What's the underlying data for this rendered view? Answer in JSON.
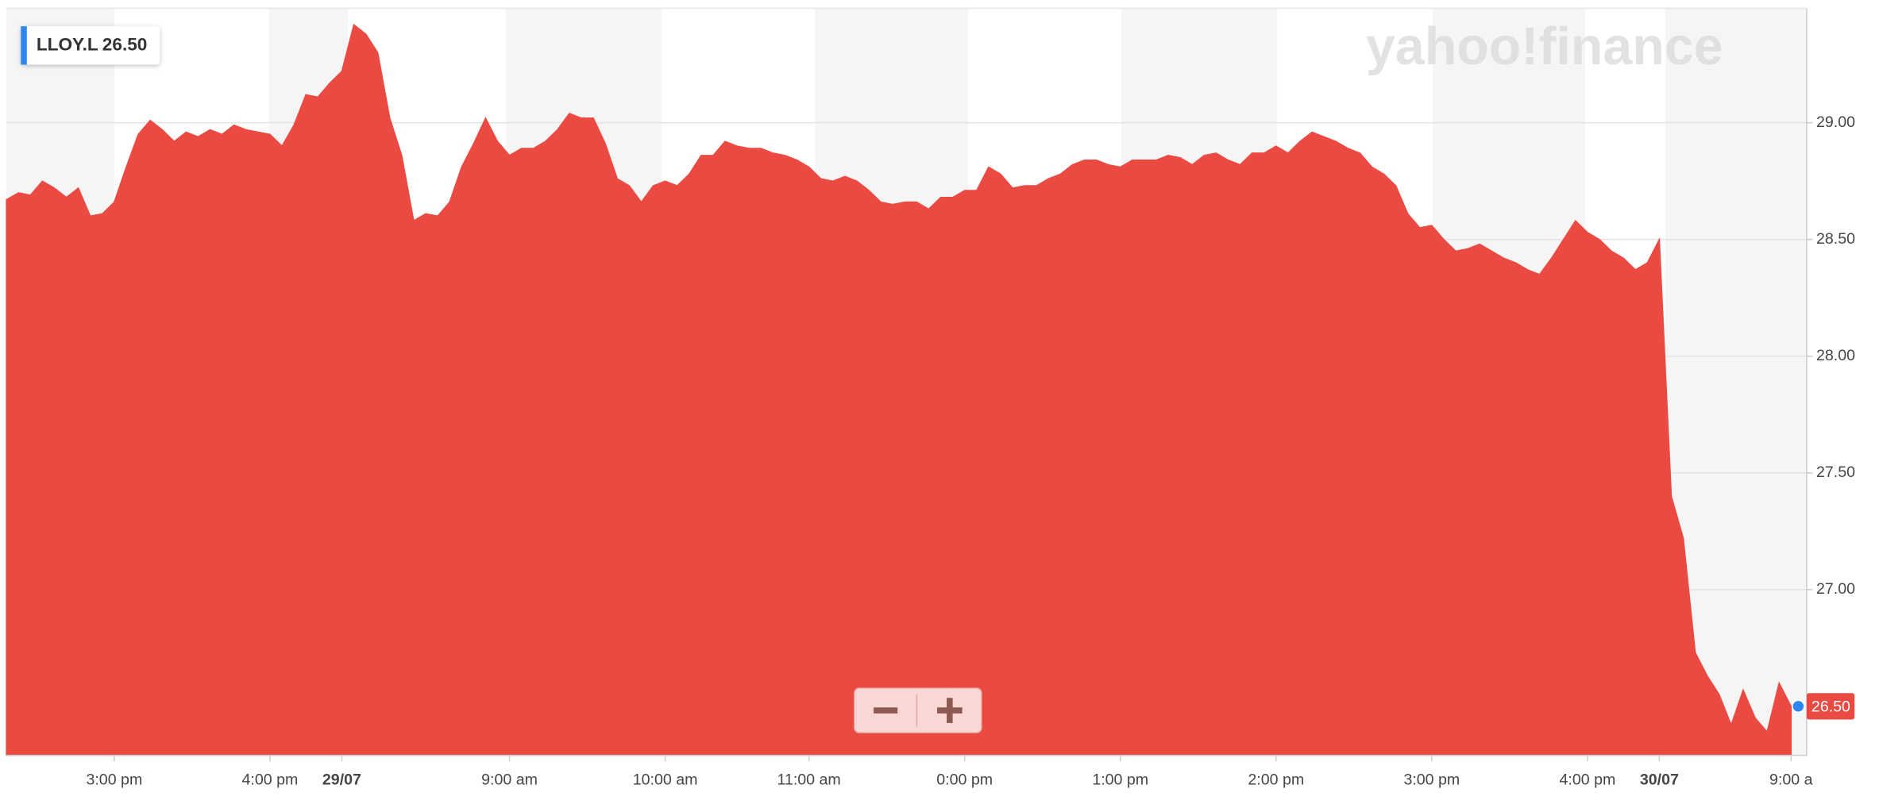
{
  "chart_data": {
    "type": "area",
    "watermark": "yahoo!finance",
    "last_price": {
      "value": 26.5,
      "label": "26.50"
    },
    "categories": [
      null,
      null,
      null,
      null,
      null,
      null,
      null,
      null,
      null,
      "3:00 pm",
      null,
      null,
      null,
      null,
      null,
      null,
      null,
      null,
      null,
      null,
      null,
      null,
      "4:00 pm",
      null,
      null,
      null,
      null,
      null,
      "29/07",
      null,
      null,
      null,
      null,
      null,
      null,
      null,
      null,
      null,
      null,
      null,
      null,
      null,
      "9:00 am",
      null,
      null,
      null,
      null,
      null,
      null,
      null,
      null,
      null,
      null,
      null,
      null,
      "10:00 am",
      null,
      null,
      null,
      null,
      null,
      null,
      null,
      null,
      null,
      null,
      null,
      "11:00 am",
      null,
      null,
      null,
      null,
      null,
      null,
      null,
      null,
      null,
      null,
      null,
      null,
      "0:00 pm",
      null,
      null,
      null,
      null,
      null,
      null,
      null,
      null,
      null,
      null,
      null,
      null,
      "1:00 pm",
      null,
      null,
      null,
      null,
      null,
      null,
      null,
      null,
      null,
      null,
      null,
      null,
      "2:00 pm",
      null,
      null,
      null,
      null,
      null,
      null,
      null,
      null,
      null,
      null,
      null,
      null,
      "3:00 pm",
      null,
      null,
      null,
      null,
      null,
      null,
      null,
      null,
      null,
      null,
      null,
      null,
      "4:00 pm",
      null,
      null,
      null,
      null,
      null,
      "30/07",
      null,
      null,
      null,
      null,
      null,
      null,
      null,
      null,
      null,
      null,
      "9:00 a"
    ],
    "series": [
      {
        "name": "LLOY.L",
        "color": "#eb4a42",
        "values": [
          28.67,
          28.7,
          28.69,
          28.75,
          28.72,
          28.68,
          28.72,
          28.6,
          28.61,
          28.66,
          28.81,
          28.95,
          29.01,
          28.97,
          28.92,
          28.96,
          28.94,
          28.97,
          28.95,
          28.99,
          28.97,
          28.96,
          28.95,
          28.9,
          28.99,
          29.12,
          29.11,
          29.17,
          29.22,
          29.42,
          29.38,
          29.3,
          29.02,
          28.86,
          28.58,
          28.61,
          28.6,
          28.66,
          28.81,
          28.91,
          29.02,
          28.92,
          28.86,
          28.89,
          28.89,
          28.92,
          28.97,
          29.04,
          29.02,
          29.02,
          28.91,
          28.76,
          28.73,
          28.66,
          28.73,
          28.75,
          28.73,
          28.78,
          28.86,
          28.86,
          28.92,
          28.9,
          28.89,
          28.89,
          28.87,
          28.86,
          28.84,
          28.81,
          28.76,
          28.75,
          28.77,
          28.75,
          28.71,
          28.66,
          28.65,
          28.66,
          28.66,
          28.63,
          28.68,
          28.68,
          28.71,
          28.71,
          28.81,
          28.78,
          28.72,
          28.73,
          28.73,
          28.76,
          28.78,
          28.82,
          28.84,
          28.84,
          28.82,
          28.81,
          28.84,
          28.84,
          28.84,
          28.86,
          28.85,
          28.82,
          28.86,
          28.87,
          28.84,
          28.82,
          28.87,
          28.87,
          28.9,
          28.87,
          28.92,
          28.96,
          28.94,
          28.92,
          28.89,
          28.87,
          28.81,
          28.78,
          28.73,
          28.61,
          28.55,
          28.56,
          28.5,
          28.45,
          28.46,
          28.48,
          28.45,
          28.42,
          28.4,
          28.37,
          28.35,
          28.42,
          28.5,
          28.58,
          28.53,
          28.5,
          28.45,
          28.42,
          28.37,
          28.4,
          28.5,
          27.4,
          27.22,
          26.73,
          26.63,
          26.55,
          26.42,
          26.57,
          26.45,
          26.39,
          26.6,
          26.5
        ]
      }
    ],
    "ylim": [
      26.29,
      29.49
    ],
    "yticks": [
      {
        "value": 27,
        "label": "27.00"
      },
      {
        "value": 27.5,
        "label": "27.50"
      },
      {
        "value": 28,
        "label": "28.00"
      },
      {
        "value": 28.5,
        "label": "28.50"
      },
      {
        "value": 29,
        "label": "29.00"
      }
    ],
    "grid": true
  }
}
